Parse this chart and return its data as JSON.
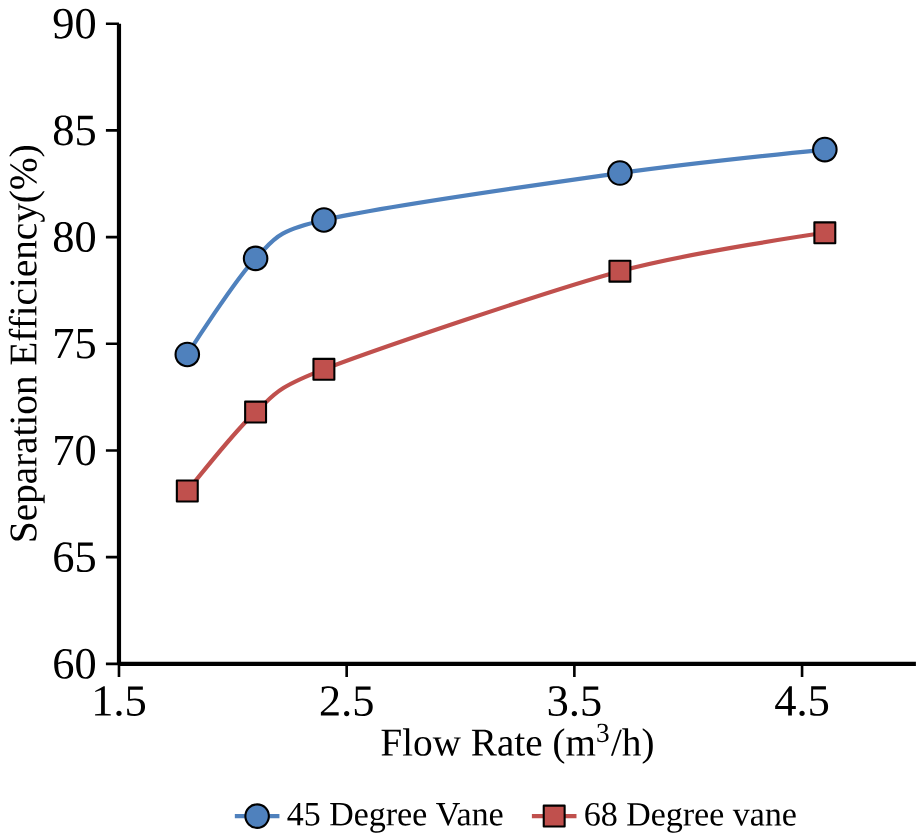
{
  "chart_data": {
    "type": "line",
    "xlabel": "Flow Rate (m$^{3}$/h)",
    "ylabel": "Separation Efficiency(%)",
    "xlim": [
      1.5,
      5
    ],
    "xticks": [
      1.5,
      2.5,
      3.5,
      4.5
    ],
    "ylim": [
      60,
      90
    ],
    "yticks": [
      60,
      65,
      70,
      75,
      80,
      85,
      90
    ],
    "grid": false,
    "legend": "bottom",
    "line_style": "solid",
    "series": [
      {
        "name": "45 Degree Vane",
        "color": "#4f81bd",
        "marker": "circle",
        "x": [
          1.8,
          2.1,
          2.4,
          3.7,
          4.6
        ],
        "values": [
          74.5,
          79.0,
          80.8,
          83.0,
          84.1
        ]
      },
      {
        "name": "68 Degree vane",
        "color": "#c0504d",
        "marker": "square",
        "x": [
          1.8,
          2.1,
          2.4,
          3.7,
          4.6
        ],
        "values": [
          68.1,
          71.8,
          73.8,
          78.4,
          80.2
        ]
      }
    ]
  }
}
